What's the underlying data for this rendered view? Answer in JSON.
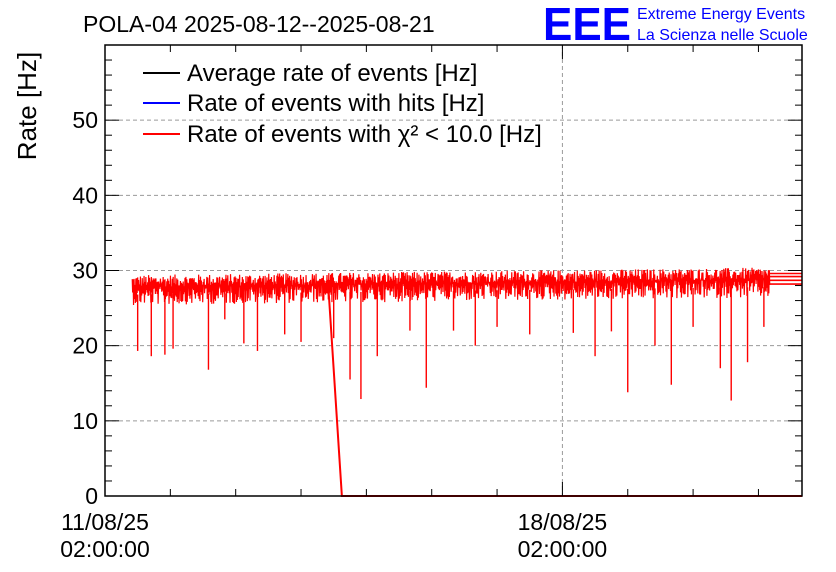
{
  "header": {
    "title": "POLA-04 2025-08-12--2025-08-21"
  },
  "logo": {
    "mark": "EEE",
    "line1": "Extreme Energy Events",
    "line2": "La Scienza nelle Scuole",
    "color": "#0000ff"
  },
  "chart_data": {
    "type": "line",
    "title": "POLA-04 2025-08-12--2025-08-21",
    "xlabel": "",
    "ylabel": "Rate [Hz]",
    "ylim": [
      0,
      60
    ],
    "xlim": [
      "2025-08-11 02:00:00",
      "2025-08-21 18:00:00"
    ],
    "yticks": [
      "0",
      "10",
      "20",
      "30",
      "40",
      "50"
    ],
    "xticks": [
      {
        "date": "11/08/25",
        "time": "02:00:00",
        "at": "2025-08-11 02:00:00"
      },
      {
        "date": "18/08/25",
        "time": "02:00:00",
        "at": "2025-08-18 02:00:00"
      }
    ],
    "grid": true,
    "legend_position": "top-left",
    "legend": [
      {
        "name": "Average rate of events [Hz]",
        "color": "#000000"
      },
      {
        "name": "Rate of events with hits [Hz]",
        "color": "#0000ff"
      },
      {
        "name": "Rate of events with χ² < 10.0 [Hz]",
        "color": "#ff0000"
      }
    ],
    "series": [
      {
        "name": "Rate of events with χ² < 10.0 [Hz]",
        "color": "#ff0000",
        "band": {
          "start": "2025-08-11 12:00:00",
          "end": "2025-08-21 06:00:00",
          "mean_start": 27.8,
          "mean_end": 28.8,
          "spread": 1.6
        },
        "dips": [
          {
            "t": "2025-08-11 14:00:00",
            "y": 19.3
          },
          {
            "t": "2025-08-11 19:00:00",
            "y": 18.6
          },
          {
            "t": "2025-08-12 00:00:00",
            "y": 18.8
          },
          {
            "t": "2025-08-12 03:00:00",
            "y": 19.6
          },
          {
            "t": "2025-08-12 16:00:00",
            "y": 16.8
          },
          {
            "t": "2025-08-12 22:00:00",
            "y": 23.5
          },
          {
            "t": "2025-08-13 05:00:00",
            "y": 20.3
          },
          {
            "t": "2025-08-13 10:00:00",
            "y": 19.3
          },
          {
            "t": "2025-08-13 20:00:00",
            "y": 21.5
          },
          {
            "t": "2025-08-14 02:00:00",
            "y": 20.5
          },
          {
            "t": "2025-08-14 14:00:00",
            "y": 21.0
          },
          {
            "t": "2025-08-14 20:00:00",
            "y": 15.5
          },
          {
            "t": "2025-08-15 00:00:00",
            "y": 12.9
          },
          {
            "t": "2025-08-15 06:00:00",
            "y": 18.6
          },
          {
            "t": "2025-08-15 18:00:00",
            "y": 22.0
          },
          {
            "t": "2025-08-16 00:00:00",
            "y": 14.4
          },
          {
            "t": "2025-08-16 10:00:00",
            "y": 22.0
          },
          {
            "t": "2025-08-16 18:00:00",
            "y": 20.0
          },
          {
            "t": "2025-08-17 02:00:00",
            "y": 22.5
          },
          {
            "t": "2025-08-17 14:00:00",
            "y": 21.5
          },
          {
            "t": "2025-08-18 06:00:00",
            "y": 21.7
          },
          {
            "t": "2025-08-18 14:00:00",
            "y": 18.6
          },
          {
            "t": "2025-08-18 20:00:00",
            "y": 21.9
          },
          {
            "t": "2025-08-19 02:00:00",
            "y": 13.8
          },
          {
            "t": "2025-08-19 12:00:00",
            "y": 20.0
          },
          {
            "t": "2025-08-19 18:00:00",
            "y": 14.8
          },
          {
            "t": "2025-08-20 02:00:00",
            "y": 22.5
          },
          {
            "t": "2025-08-20 12:00:00",
            "y": 17.0
          },
          {
            "t": "2025-08-20 16:00:00",
            "y": 12.7
          },
          {
            "t": "2025-08-20 22:00:00",
            "y": 17.8
          },
          {
            "t": "2025-08-21 04:00:00",
            "y": 22.5
          }
        ],
        "drop": [
          {
            "t": "2025-08-14 12:00:00",
            "y": 28.0
          },
          {
            "t": "2025-08-14 17:00:00",
            "y": 0
          }
        ],
        "zero_end": "2025-08-21 18:00:00",
        "tail": [
          {
            "start": "2025-08-21 06:00:00",
            "end": "2025-08-21 18:00:00",
            "y": 28.2
          },
          {
            "start": "2025-08-21 06:00:00",
            "end": "2025-08-21 18:00:00",
            "y": 28.7
          },
          {
            "start": "2025-08-21 06:00:00",
            "end": "2025-08-21 18:00:00",
            "y": 29.2
          },
          {
            "start": "2025-08-21 06:00:00",
            "end": "2025-08-21 18:00:00",
            "y": 29.6
          }
        ]
      }
    ]
  }
}
